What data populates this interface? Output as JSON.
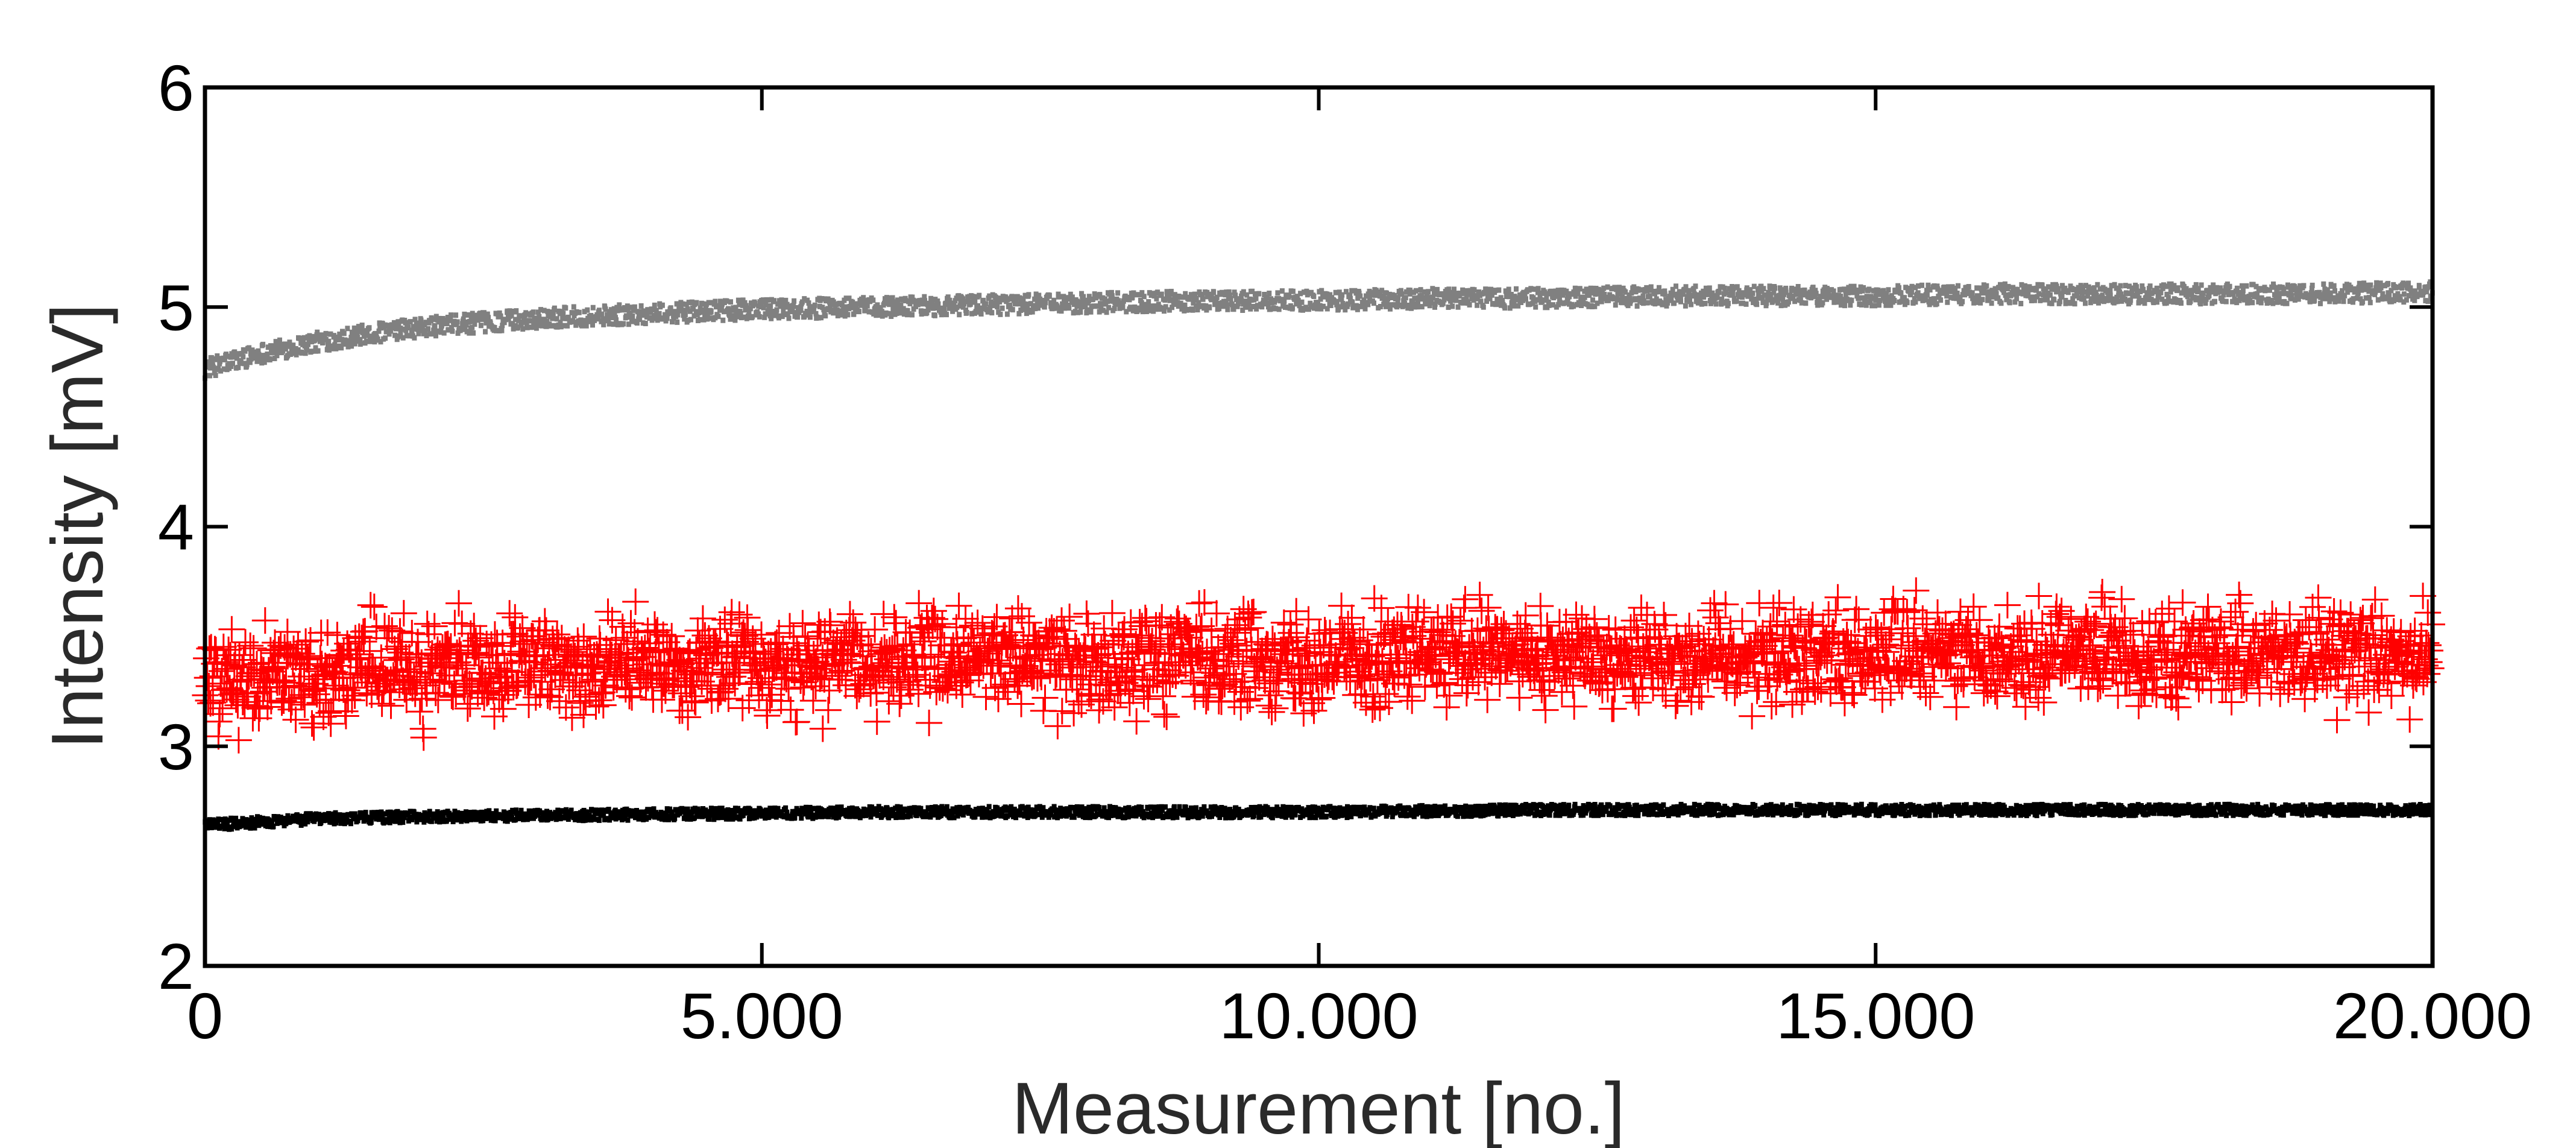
{
  "chart_data": {
    "type": "scatter",
    "title": "",
    "xlabel": "Measurement [no.]",
    "ylabel": "Intensity [mV]",
    "xlim": [
      0,
      20000
    ],
    "ylim": [
      2,
      6
    ],
    "grid": false,
    "legend": "none",
    "x_ticks": [
      0,
      5000,
      10000,
      15000,
      20000
    ],
    "x_tick_labels": [
      "0",
      "5.000",
      "10.000",
      "15.000",
      "20.000"
    ],
    "y_ticks": [
      2,
      3,
      4,
      5,
      6
    ],
    "y_tick_labels": [
      "2",
      "3",
      "4",
      "5",
      "6"
    ],
    "series": [
      {
        "marker": "dot",
        "color": "#808080",
        "x": [
          0,
          500,
          1000,
          1500,
          2000,
          2500,
          3000,
          4000,
          5000,
          6000,
          7000,
          8000,
          9000,
          10000,
          11000,
          12000,
          13000,
          14000,
          15000,
          16000,
          17000,
          18000,
          19000,
          20000
        ],
        "y": [
          4.72,
          4.79,
          4.84,
          4.88,
          4.91,
          4.93,
          4.95,
          4.97,
          4.99,
          5.0,
          5.01,
          5.02,
          5.03,
          5.03,
          5.04,
          5.04,
          5.05,
          5.05,
          5.05,
          5.06,
          5.06,
          5.06,
          5.06,
          5.07
        ],
        "spread": 0.09
      },
      {
        "marker": "plus",
        "color": "#ff0000",
        "x": [
          0,
          2500,
          5000,
          7500,
          10000,
          12500,
          15000,
          17500,
          20000
        ],
        "y": [
          3.32,
          3.36,
          3.38,
          3.4,
          3.4,
          3.41,
          3.42,
          3.42,
          3.43
        ],
        "spread": 0.55
      },
      {
        "marker": "dot",
        "color": "#000000",
        "x": [
          0,
          1000,
          2000,
          4000,
          6000,
          8000,
          10000,
          12000,
          14000,
          16000,
          18000,
          20000
        ],
        "y": [
          2.64,
          2.67,
          2.68,
          2.69,
          2.7,
          2.7,
          2.7,
          2.71,
          2.71,
          2.71,
          2.71,
          2.71
        ],
        "spread": 0.05
      }
    ]
  }
}
